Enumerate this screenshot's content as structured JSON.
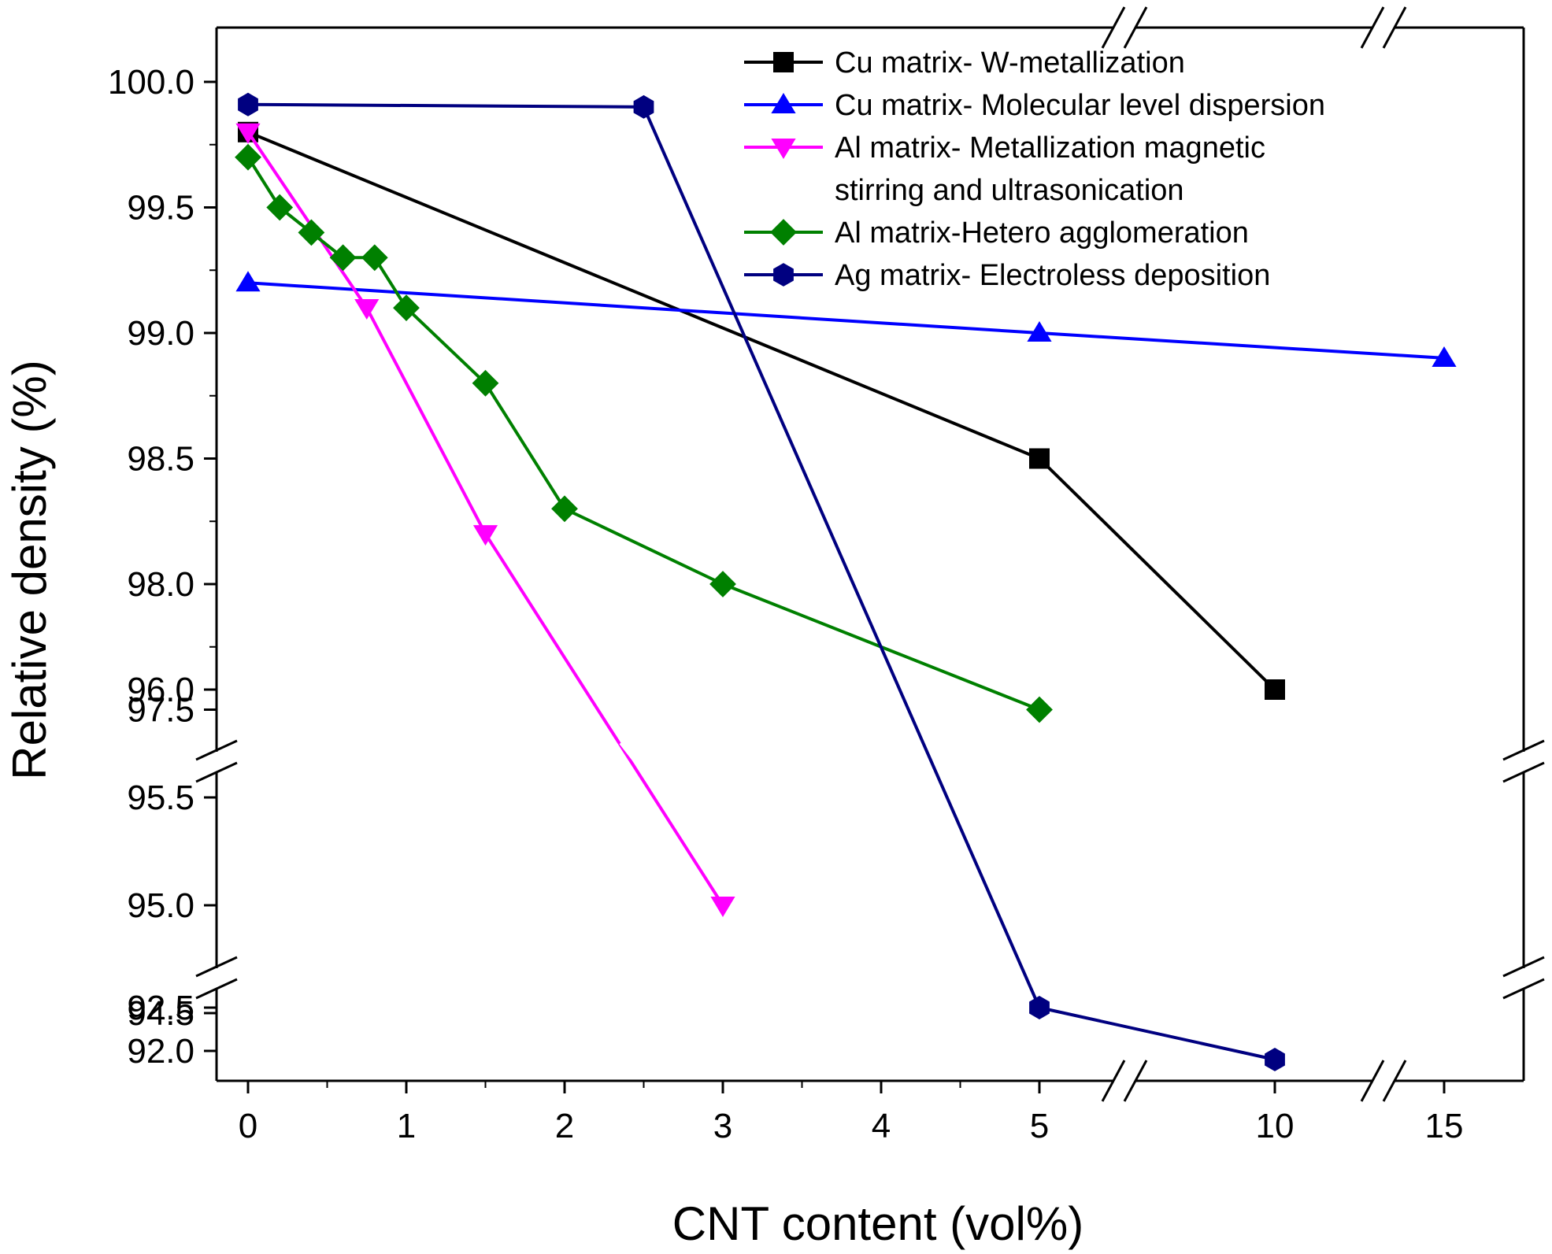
{
  "chart_data": {
    "type": "line",
    "title": "",
    "xlabel": "CNT content (vol%)",
    "ylabel": "Relative density (%)",
    "axis_breaks": {
      "x": [
        "between 5 and 10",
        "between 10 and 15"
      ],
      "y": [
        "between 96.0 and 97.5",
        "between 92.5 and 94.5"
      ]
    },
    "x_ticks": [
      {
        "value": 0,
        "label": "0"
      },
      {
        "value": 1,
        "label": "1"
      },
      {
        "value": 2,
        "label": "2"
      },
      {
        "value": 3,
        "label": "3"
      },
      {
        "value": 4,
        "label": "4"
      },
      {
        "value": 5,
        "label": "5"
      },
      {
        "value": 10,
        "label": "10"
      },
      {
        "value": 15,
        "label": "15"
      }
    ],
    "y_ticks": [
      {
        "value": 92.0,
        "label": "92.0"
      },
      {
        "value": 92.5,
        "label": "92.5"
      },
      {
        "value": 94.5,
        "label": "94.5"
      },
      {
        "value": 95.0,
        "label": "95.0"
      },
      {
        "value": 95.5,
        "label": "95.5"
      },
      {
        "value": 96.0,
        "label": "96.0"
      },
      {
        "value": 97.5,
        "label": "97.5"
      },
      {
        "value": 98.0,
        "label": "98.0"
      },
      {
        "value": 98.5,
        "label": "98.5"
      },
      {
        "value": 99.0,
        "label": "99.0"
      },
      {
        "value": 99.5,
        "label": "99.5"
      },
      {
        "value": 100.0,
        "label": "100.0"
      }
    ],
    "legend_position": "top-right",
    "series": [
      {
        "name": "Cu matrix- W-metallization",
        "legend_lines": [
          "Cu matrix- W-metallization"
        ],
        "color": "#000000",
        "marker": "square",
        "x": [
          0,
          5,
          10
        ],
        "y": [
          99.8,
          98.5,
          96.0
        ]
      },
      {
        "name": "Cu matrix- Molecular level dispersion",
        "legend_lines": [
          "Cu matrix- Molecular level dispersion"
        ],
        "color": "#0000ff",
        "marker": "triangle-up",
        "x": [
          0,
          5,
          15
        ],
        "y": [
          99.2,
          99.0,
          98.9
        ]
      },
      {
        "name": "Al matrix- Metallization magnetic stirring and ultrasonication",
        "legend_lines": [
          "Al matrix- Metallization magnetic",
          "stirring and ultrasonication"
        ],
        "color": "#ff00ff",
        "marker": "triangle-down",
        "x": [
          0,
          0.75,
          1.5,
          3
        ],
        "y": [
          99.8,
          99.1,
          98.2,
          95.0
        ]
      },
      {
        "name": "Al matrix-Hetero agglomeration",
        "legend_lines": [
          "Al matrix-Hetero agglomeration"
        ],
        "color": "#008000",
        "marker": "diamond",
        "x": [
          0,
          0.2,
          0.4,
          0.6,
          0.8,
          1,
          1.5,
          2,
          3,
          5
        ],
        "y": [
          99.7,
          99.5,
          99.4,
          99.3,
          99.3,
          99.1,
          98.8,
          98.3,
          98.0,
          97.5
        ]
      },
      {
        "name": "Ag matrix- Electroless deposition",
        "legend_lines": [
          "Ag matrix- Electroless deposition"
        ],
        "color": "#000080",
        "marker": "hexagon",
        "x": [
          0,
          2.5,
          5,
          10
        ],
        "y": [
          99.91,
          99.9,
          92.5,
          91.9
        ]
      }
    ]
  }
}
